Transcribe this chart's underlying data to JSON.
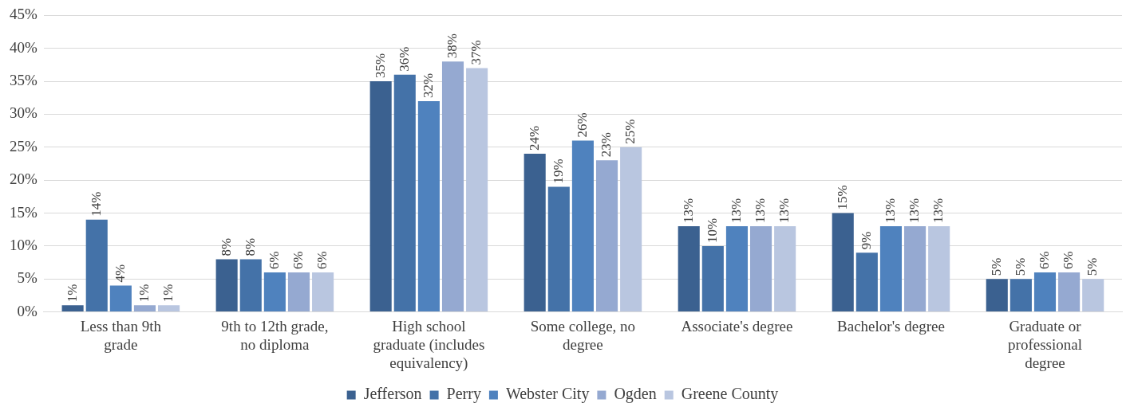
{
  "chart_data": {
    "type": "bar",
    "categories": [
      "Less than 9th grade",
      "9th to 12th grade, no diploma",
      "High school graduate (includes equivalency)",
      "Some college, no degree",
      "Associate's degree",
      "Bachelor's degree",
      "Graduate or professional degree"
    ],
    "series": [
      {
        "name": "Jefferson",
        "color": "#3b6190",
        "values": [
          1,
          8,
          35,
          24,
          13,
          15,
          5
        ],
        "value_labels": [
          "1%",
          "8%",
          "35%",
          "24%",
          "13%",
          "15%",
          "5%"
        ]
      },
      {
        "name": "Perry",
        "color": "#4472a8",
        "values": [
          14,
          8,
          36,
          19,
          10,
          9,
          5
        ],
        "value_labels": [
          "14%",
          "8%",
          "36%",
          "19%",
          "10%",
          "9%",
          "5%"
        ]
      },
      {
        "name": "Webster City",
        "color": "#4f82be",
        "values": [
          4,
          6,
          32,
          26,
          13,
          13,
          6
        ],
        "value_labels": [
          "4%",
          "6%",
          "32%",
          "26%",
          "13%",
          "13%",
          "6%"
        ]
      },
      {
        "name": "Ogden",
        "color": "#95a9d1",
        "values": [
          1,
          6,
          38,
          23,
          13,
          13,
          6
        ],
        "value_labels": [
          "1%",
          "6%",
          "38%",
          "23%",
          "13%",
          "13%",
          "6%"
        ]
      },
      {
        "name": "Greene County",
        "color": "#b9c6e0",
        "values": [
          1,
          6,
          37,
          25,
          13,
          13,
          5
        ],
        "value_labels": [
          "1%",
          "6%",
          "37%",
          "25%",
          "13%",
          "13%",
          "5%"
        ]
      }
    ],
    "ylim": [
      0,
      45
    ],
    "yticks": [
      {
        "value": 0,
        "label": "0%"
      },
      {
        "value": 5,
        "label": "5%"
      },
      {
        "value": 10,
        "label": "10%"
      },
      {
        "value": 15,
        "label": "15%"
      },
      {
        "value": 20,
        "label": "20%"
      },
      {
        "value": 25,
        "label": "25%"
      },
      {
        "value": 30,
        "label": "30%"
      },
      {
        "value": 35,
        "label": "35%"
      },
      {
        "value": 40,
        "label": "40%"
      },
      {
        "value": 45,
        "label": "45%"
      }
    ],
    "grid": "y",
    "legend": "bottom"
  }
}
